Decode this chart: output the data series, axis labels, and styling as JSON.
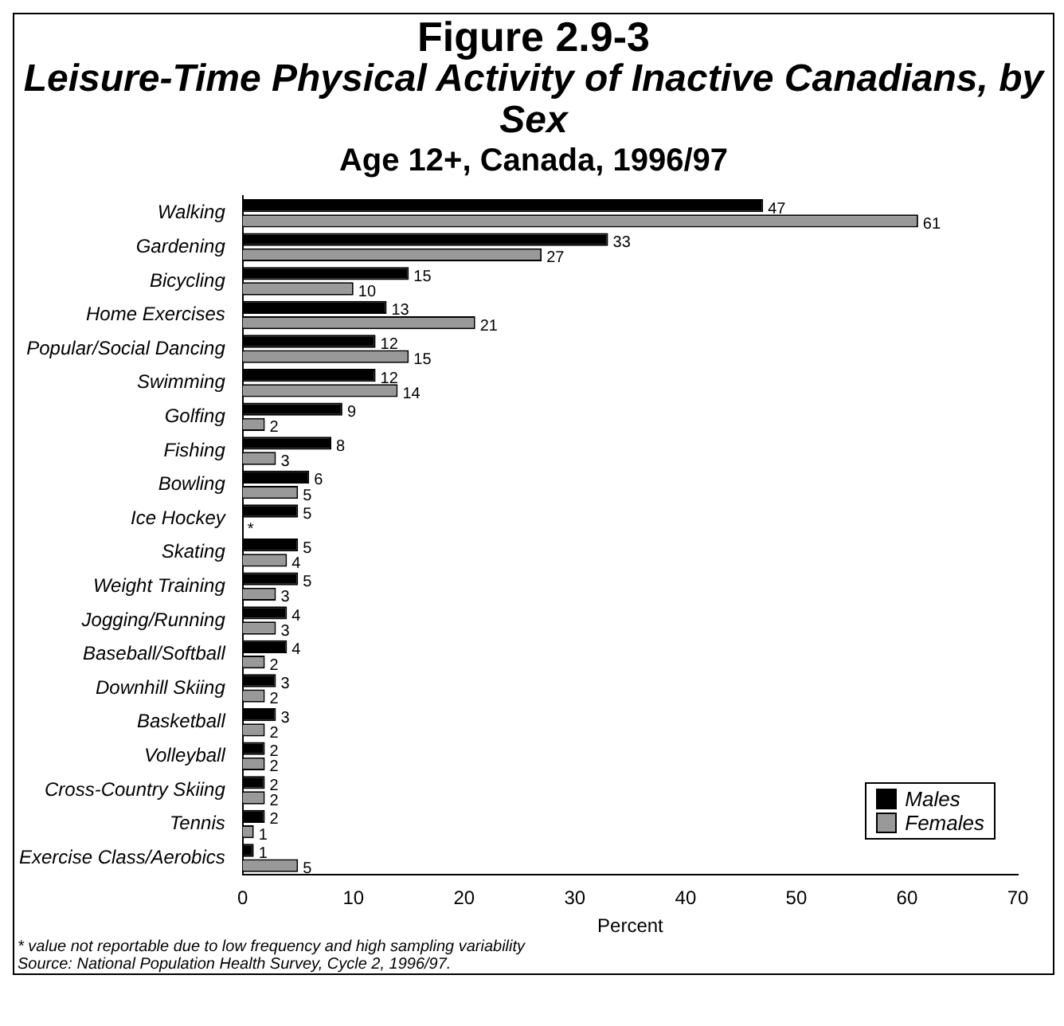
{
  "chart_data": {
    "type": "bar",
    "orientation": "horizontal",
    "title": "Figure 2.9-3",
    "subtitle": "Leisure-Time Physical Activity of Inactive Canadians, by Sex\nAge 12+, Canada, 1996/97",
    "categories": [
      "Walking",
      "Gardening",
      "Bicycling",
      "Home Exercises",
      "Popular/Social Dancing",
      "Swimming",
      "Golfing",
      "Fishing",
      "Bowling",
      "Ice Hockey",
      "Skating",
      "Weight Training",
      "Jogging/Running",
      "Baseball/Softball",
      "Downhill Skiing",
      "Basketball",
      "Volleyball",
      "Cross-Country Skiing",
      "Tennis",
      "Exercise Class/Aerobics"
    ],
    "series": [
      {
        "name": "Males",
        "color": "#000000",
        "values": [
          47,
          33,
          15,
          13,
          12,
          12,
          9,
          8,
          6,
          5,
          5,
          5,
          4,
          4,
          3,
          3,
          2,
          2,
          2,
          1
        ],
        "value_labels": [
          "47",
          "33",
          "15",
          "13",
          "12",
          "12",
          "9",
          "8",
          "6",
          "5",
          "5",
          "5",
          "4",
          "4",
          "3",
          "3",
          "2",
          "2",
          "2",
          "1"
        ]
      },
      {
        "name": "Females",
        "color": "#999999",
        "values": [
          61,
          27,
          10,
          21,
          15,
          14,
          2,
          3,
          5,
          null,
          4,
          3,
          3,
          2,
          2,
          2,
          2,
          2,
          1,
          5
        ],
        "value_labels": [
          "61",
          "27",
          "10",
          "21",
          "15",
          "14",
          "2",
          "3",
          "5",
          "*",
          "4",
          "3",
          "3",
          "2",
          "2",
          "2",
          "2",
          "2",
          "1",
          "5"
        ]
      }
    ],
    "xlabel": "Percent",
    "xlim": [
      0,
      70
    ],
    "xticks": [
      0,
      10,
      20,
      30,
      40,
      50,
      60,
      70
    ],
    "grid": false,
    "legend": "bottom right",
    "annotations": [
      "* value not reportable due to low frequency and high sampling variability",
      "Source: National Population Health Survey, Cycle 2, 1996/97."
    ]
  }
}
